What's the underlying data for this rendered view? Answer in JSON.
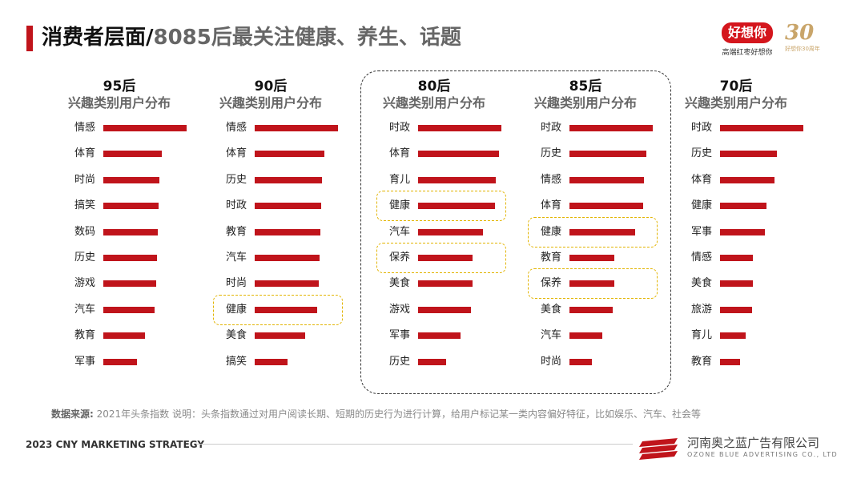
{
  "header": {
    "title_part1": "消费者层面/",
    "title_part2": "8085后最关注健康、养生、话题"
  },
  "brand": {
    "name": "好想你",
    "slogan": "高端红枣好想你",
    "anniversary_number": "30",
    "anniversary_text": "好想你30周年"
  },
  "footer": {
    "source_label": "数据来源:",
    "source_text": "2021年头条指数 说明：头条指数通过对用户阅读长期、短期的历史行为进行计算，给用户标记某一类内容偏好特征，比如娱乐、汽车、社会等",
    "strategy": "2023 CNY MARKETING STRATEGY",
    "company_cn": "河南奥之蓝广告有限公司",
    "company_en": "OZONE BLUE ADVERTISING CO., LTD"
  },
  "colors": {
    "accent": "#c0141b",
    "highlight": "#e2b400"
  },
  "chart_data": [
    {
      "type": "bar",
      "title": "95后",
      "subtitle": "兴趣类别用户分布",
      "categories": [
        "情感",
        "体育",
        "时尚",
        "搞笑",
        "数码",
        "历史",
        "游戏",
        "汽车",
        "教育",
        "军事"
      ],
      "values": [
        100,
        70,
        67,
        66,
        65,
        64,
        63,
        62,
        50,
        40
      ],
      "highlighted": []
    },
    {
      "type": "bar",
      "title": "90后",
      "subtitle": "兴趣类别用户分布",
      "categories": [
        "情感",
        "体育",
        "历史",
        "时政",
        "教育",
        "汽车",
        "时尚",
        "健康",
        "美食",
        "搞笑"
      ],
      "values": [
        100,
        84,
        81,
        80,
        79,
        78,
        77,
        75,
        61,
        39
      ],
      "highlighted": [
        "健康"
      ]
    },
    {
      "type": "bar",
      "title": "80后",
      "subtitle": "兴趣类别用户分布",
      "categories": [
        "时政",
        "体育",
        "育儿",
        "健康",
        "汽车",
        "保养",
        "美食",
        "游戏",
        "军事",
        "历史"
      ],
      "values": [
        100,
        97,
        93,
        92,
        78,
        65,
        65,
        63,
        51,
        34
      ],
      "highlighted": [
        "健康",
        "保养"
      ]
    },
    {
      "type": "bar",
      "title": "85后",
      "subtitle": "兴趣类别用户分布",
      "categories": [
        "时政",
        "历史",
        "情感",
        "体育",
        "健康",
        "教育",
        "保养",
        "美食",
        "汽车",
        "时尚"
      ],
      "values": [
        100,
        92,
        89,
        88,
        79,
        54,
        54,
        52,
        39,
        27
      ],
      "highlighted": [
        "健康",
        "保养"
      ]
    },
    {
      "type": "bar",
      "title": "70后",
      "subtitle": "兴趣类别用户分布",
      "categories": [
        "时政",
        "历史",
        "体育",
        "健康",
        "军事",
        "情感",
        "美食",
        "旅游",
        "育儿",
        "教育"
      ],
      "values": [
        100,
        68,
        65,
        56,
        54,
        39,
        39,
        38,
        31,
        24
      ],
      "highlighted": []
    }
  ]
}
